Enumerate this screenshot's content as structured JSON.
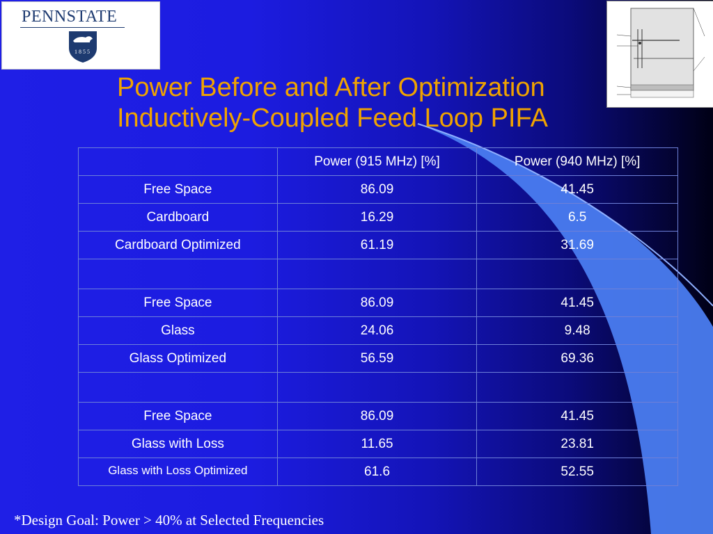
{
  "logo": {
    "wordmark": "PENNSTATE",
    "year": "1855"
  },
  "title": {
    "line1": "Power Before and After Optimization",
    "line2": "Inductively-Coupled Feed Loop PIFA"
  },
  "table": {
    "headers": [
      "",
      "Power (915 MHz) [%]",
      "Power (940 MHz) [%]"
    ],
    "rows": [
      [
        "Free Space",
        "86.09",
        "41.45"
      ],
      [
        "Cardboard",
        "16.29",
        "6.5"
      ],
      [
        "Cardboard Optimized",
        "61.19",
        "31.69"
      ],
      [
        "",
        "",
        ""
      ],
      [
        "Free Space",
        "86.09",
        "41.45"
      ],
      [
        "Glass",
        "24.06",
        "9.48"
      ],
      [
        "Glass Optimized",
        "56.59",
        "69.36"
      ],
      [
        "",
        "",
        ""
      ],
      [
        "Free Space",
        "86.09",
        "41.45"
      ],
      [
        "Glass with Loss",
        "11.65",
        "23.81"
      ],
      [
        "Glass with Loss Optimized",
        "61.6",
        "52.55"
      ]
    ]
  },
  "footnote": "*Design Goal: Power > 40% at Selected Frequencies",
  "colors": {
    "title": "#f0a300",
    "background": "#1f1fe6",
    "swoosh": "#4a7cf0",
    "text": "#ffffff"
  }
}
